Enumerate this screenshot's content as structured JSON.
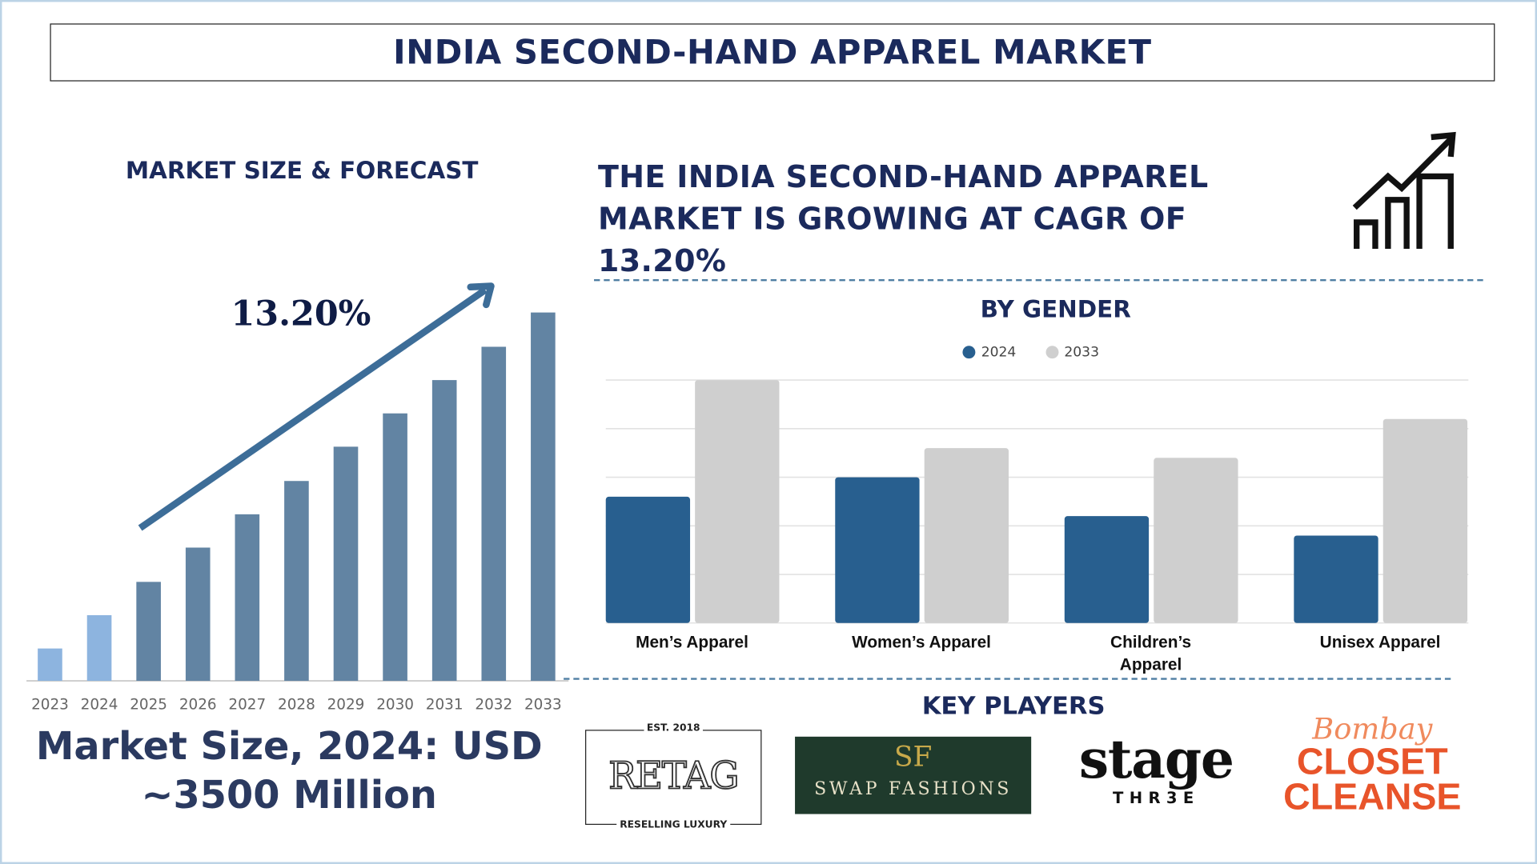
{
  "title": "INDIA SECOND-HAND APPAREL MARKET",
  "left_panel": {
    "heading": "MARKET SIZE & FORECAST",
    "cagr_label": "13.20%",
    "market_size_line1": "Market Size, 2024: USD",
    "market_size_line2": "~3500 Million"
  },
  "right_panel": {
    "headline_line1": "THE INDIA SECOND-HAND APPAREL",
    "headline_line2": "MARKET IS GROWING AT CAGR OF",
    "headline_line3": "13.20%",
    "icon": "growth-chart-icon"
  },
  "key_players": {
    "heading": "KEY PLAYERS",
    "logos": [
      {
        "name": "RETAG",
        "top": "EST. 2018",
        "bottom": "RESELLING LUXURY"
      },
      {
        "name": "SWAP FASHIONS",
        "mark": "SF"
      },
      {
        "name": "stage",
        "sub": "THR3E"
      },
      {
        "script": "Bombay",
        "line1": "CLOSET",
        "line2": "CLEANSE"
      }
    ]
  },
  "colors": {
    "navy": "#1b2a5c",
    "bar_hist": "#8db4df",
    "bar_fc": "#6284a3",
    "s2024": "#285f8f",
    "s2033": "#cfcfcf"
  },
  "chart_data": [
    {
      "type": "bar",
      "title": "MARKET SIZE & FORECAST",
      "categories": [
        "2023",
        "2024",
        "2025",
        "2026",
        "2027",
        "2028",
        "2029",
        "2030",
        "2031",
        "2032",
        "2033"
      ],
      "values": [
        33,
        67,
        101,
        136,
        170,
        204,
        239,
        273,
        307,
        341,
        376
      ],
      "value_units": "relative (no axis shown)",
      "historical": [
        "2023",
        "2024"
      ],
      "annotation": "13.20%",
      "xlabel": "",
      "ylabel": "",
      "grid": false
    },
    {
      "type": "bar",
      "title": "BY GENDER",
      "categories": [
        "Men’s Apparel",
        "Women’s Apparel",
        "Children’s Apparel",
        "Unisex Apparel"
      ],
      "series": [
        {
          "name": "2024",
          "values": [
            2.6,
            3.0,
            2.2,
            1.8
          ]
        },
        {
          "name": "2033",
          "values": [
            5.0,
            3.6,
            3.4,
            4.2
          ]
        }
      ],
      "ylim": [
        0,
        5
      ],
      "grid": true,
      "legend": "top-center",
      "value_units": "relative (no axis labels shown)"
    }
  ]
}
